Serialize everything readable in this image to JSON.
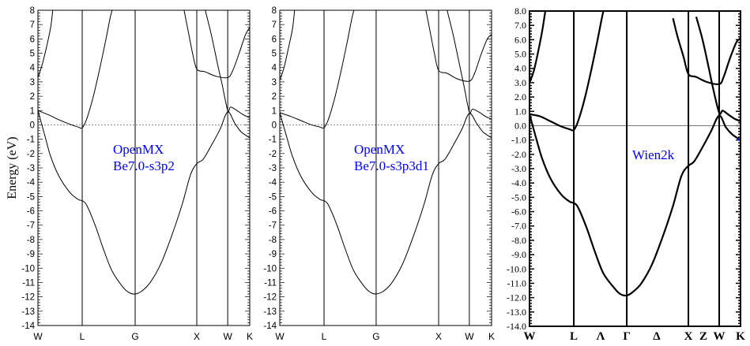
{
  "chart_data": [
    {
      "type": "line",
      "title": "",
      "annotation": [
        "OpenMX",
        "Be7.0-s3p2"
      ],
      "ylabel": "Energy (eV)",
      "xlabel": "",
      "ylim": [
        -14,
        8
      ],
      "yticks": [
        "8",
        "7",
        "6",
        "5",
        "4",
        "3",
        "2",
        "1",
        "0",
        "-1",
        "-2",
        "-3",
        "-4",
        "-5",
        "-6",
        "-7",
        "-8",
        "-9",
        "-10",
        "-11",
        "-12",
        "-13",
        "-14"
      ],
      "kpoints": [
        {
          "label": "W",
          "k": 0
        },
        {
          "label": "L",
          "k": 0.209
        },
        {
          "label": "G",
          "k": 0.459
        },
        {
          "label": "X",
          "k": 0.75
        },
        {
          "label": "W",
          "k": 0.896
        },
        {
          "label": "K",
          "k": 1
        }
      ],
      "fermi_line": "dashed",
      "bands": [
        [
          [
            0,
            1.0
          ],
          [
            0.03,
            -0.6
          ],
          [
            0.06,
            -2.2
          ],
          [
            0.1,
            -3.6
          ],
          [
            0.15,
            -4.7
          ],
          [
            0.19,
            -5.2
          ],
          [
            0.209,
            -5.3
          ],
          [
            0.23,
            -5.6
          ],
          [
            0.27,
            -7.0
          ],
          [
            0.31,
            -8.7
          ],
          [
            0.35,
            -10.2
          ],
          [
            0.4,
            -11.3
          ],
          [
            0.43,
            -11.7
          ],
          [
            0.459,
            -11.8
          ],
          [
            0.49,
            -11.6
          ],
          [
            0.53,
            -11.0
          ],
          [
            0.58,
            -9.7
          ],
          [
            0.63,
            -7.8
          ],
          [
            0.68,
            -5.6
          ],
          [
            0.72,
            -3.5
          ],
          [
            0.75,
            -2.7
          ],
          [
            0.78,
            -2.4
          ],
          [
            0.82,
            -1.4
          ],
          [
            0.86,
            -0.3
          ],
          [
            0.896,
            0.9
          ],
          [
            0.93,
            0.1
          ],
          [
            0.96,
            -0.5
          ],
          [
            1,
            -0.9
          ]
        ],
        [
          [
            0,
            1.0
          ],
          [
            0.05,
            0.7
          ],
          [
            0.1,
            0.35
          ],
          [
            0.15,
            0.05
          ],
          [
            0.19,
            -0.15
          ],
          [
            0.209,
            -0.2
          ],
          [
            0.23,
            0.4
          ],
          [
            0.26,
            1.9
          ],
          [
            0.29,
            3.8
          ],
          [
            0.32,
            5.9
          ],
          [
            0.34,
            7.4
          ],
          [
            0.35,
            8
          ]
        ],
        [
          [
            0,
            3.3
          ],
          [
            0.02,
            4.2
          ],
          [
            0.04,
            5.4
          ],
          [
            0.06,
            6.8
          ],
          [
            0.07,
            8
          ]
        ],
        [
          [
            0.69,
            8
          ],
          [
            0.71,
            6.5
          ],
          [
            0.73,
            5.0
          ],
          [
            0.75,
            3.9
          ],
          [
            0.79,
            3.7
          ],
          [
            0.84,
            3.4
          ],
          [
            0.896,
            3.3
          ],
          [
            0.92,
            3.8
          ],
          [
            0.95,
            5.0
          ],
          [
            0.98,
            6.3
          ],
          [
            1,
            6.8
          ]
        ],
        [
          [
            0.79,
            8
          ],
          [
            0.82,
            6.2
          ],
          [
            0.85,
            4.1
          ],
          [
            0.87,
            2.8
          ],
          [
            0.896,
            1.0
          ],
          [
            0.91,
            1.25
          ],
          [
            0.94,
            1.0
          ],
          [
            0.97,
            0.7
          ],
          [
            1,
            0.5
          ]
        ]
      ]
    },
    {
      "type": "line",
      "title": "",
      "annotation": [
        "OpenMX",
        "Be7.0-s3p3d1"
      ],
      "ylabel": "",
      "xlabel": "",
      "ylim": [
        -14,
        8
      ],
      "yticks": [
        "8",
        "7",
        "6",
        "5",
        "4",
        "3",
        "2",
        "1",
        "0",
        "-1",
        "-2",
        "-3",
        "-4",
        "-5",
        "-6",
        "-7",
        "-8",
        "-9",
        "-10",
        "-11",
        "-12",
        "-13",
        "-14"
      ],
      "kpoints": [
        {
          "label": "W",
          "k": 0
        },
        {
          "label": "L",
          "k": 0.209
        },
        {
          "label": "G",
          "k": 0.455
        },
        {
          "label": "X",
          "k": 0.75
        },
        {
          "label": "W",
          "k": 0.895
        },
        {
          "label": "K",
          "k": 1
        }
      ],
      "fermi_line": "dashed",
      "bands": [
        [
          [
            0,
            0.85
          ],
          [
            0.03,
            -0.7
          ],
          [
            0.06,
            -2.2
          ],
          [
            0.1,
            -3.6
          ],
          [
            0.15,
            -4.7
          ],
          [
            0.19,
            -5.2
          ],
          [
            0.209,
            -5.3
          ],
          [
            0.23,
            -5.6
          ],
          [
            0.27,
            -7.0
          ],
          [
            0.31,
            -8.7
          ],
          [
            0.35,
            -10.2
          ],
          [
            0.4,
            -11.3
          ],
          [
            0.43,
            -11.7
          ],
          [
            0.455,
            -11.8
          ],
          [
            0.49,
            -11.6
          ],
          [
            0.53,
            -11.0
          ],
          [
            0.58,
            -9.7
          ],
          [
            0.63,
            -7.8
          ],
          [
            0.68,
            -5.6
          ],
          [
            0.72,
            -3.5
          ],
          [
            0.75,
            -2.7
          ],
          [
            0.78,
            -2.4
          ],
          [
            0.82,
            -1.4
          ],
          [
            0.86,
            -0.3
          ],
          [
            0.895,
            0.8
          ],
          [
            0.93,
            0.1
          ],
          [
            0.96,
            -0.5
          ],
          [
            1,
            -0.9
          ]
        ],
        [
          [
            0,
            0.85
          ],
          [
            0.05,
            0.6
          ],
          [
            0.1,
            0.3
          ],
          [
            0.15,
            0.0
          ],
          [
            0.19,
            -0.15
          ],
          [
            0.209,
            -0.2
          ],
          [
            0.23,
            0.4
          ],
          [
            0.26,
            1.9
          ],
          [
            0.29,
            3.8
          ],
          [
            0.32,
            5.9
          ],
          [
            0.34,
            7.4
          ],
          [
            0.35,
            8
          ]
        ],
        [
          [
            0,
            3.1
          ],
          [
            0.02,
            4.0
          ],
          [
            0.04,
            5.3
          ],
          [
            0.06,
            6.7
          ],
          [
            0.07,
            8
          ]
        ],
        [
          [
            0.69,
            8
          ],
          [
            0.71,
            6.5
          ],
          [
            0.73,
            5.0
          ],
          [
            0.75,
            3.8
          ],
          [
            0.79,
            3.6
          ],
          [
            0.84,
            3.2
          ],
          [
            0.895,
            3.05
          ],
          [
            0.92,
            3.6
          ],
          [
            0.95,
            4.9
          ],
          [
            0.98,
            6.0
          ],
          [
            1,
            6.3
          ]
        ],
        [
          [
            0.79,
            8
          ],
          [
            0.82,
            6.2
          ],
          [
            0.85,
            4.1
          ],
          [
            0.87,
            2.7
          ],
          [
            0.895,
            0.9
          ],
          [
            0.91,
            1.1
          ],
          [
            0.94,
            0.9
          ],
          [
            0.97,
            0.6
          ],
          [
            1,
            0.4
          ]
        ]
      ]
    },
    {
      "type": "line",
      "title": "",
      "annotation": [
        "Wien2k"
      ],
      "ylabel": "",
      "xlabel": "",
      "ylim": [
        -14,
        8
      ],
      "yticks": [
        "8.0",
        "7.0",
        "6.0",
        "5.0",
        "4.0",
        "3.0",
        "2.0",
        "1.0",
        "0.0",
        "-1.0",
        "-2.0",
        "-3.0",
        "-4.0",
        "-5.0",
        "-6.0",
        "-7.0",
        "-8.0",
        "-9.0",
        "-10.0",
        "-11.0",
        "-12.0",
        "-13.0",
        "-14.0"
      ],
      "kpoints": [
        {
          "label": "W",
          "k": 0,
          "line": false
        },
        {
          "label": "L",
          "k": 0.21,
          "line": true
        },
        {
          "label": "Λ",
          "k": 0.337,
          "line": false
        },
        {
          "label": "Γ",
          "k": 0.461,
          "line": true
        },
        {
          "label": "Δ",
          "k": 0.603,
          "line": false
        },
        {
          "label": "X",
          "k": 0.753,
          "line": true
        },
        {
          "label": "Z",
          "k": 0.824,
          "line": false
        },
        {
          "label": "W",
          "k": 0.899,
          "line": true
        },
        {
          "label": "K",
          "k": 1,
          "line": false
        }
      ],
      "fermi_line": "solid",
      "bands": [
        [
          [
            0,
            0.8
          ],
          [
            0.03,
            -0.8
          ],
          [
            0.06,
            -2.3
          ],
          [
            0.1,
            -3.7
          ],
          [
            0.15,
            -4.8
          ],
          [
            0.19,
            -5.3
          ],
          [
            0.21,
            -5.4
          ],
          [
            0.23,
            -5.7
          ],
          [
            0.27,
            -7.1
          ],
          [
            0.31,
            -8.8
          ],
          [
            0.35,
            -10.3
          ],
          [
            0.4,
            -11.3
          ],
          [
            0.43,
            -11.75
          ],
          [
            0.461,
            -11.85
          ],
          [
            0.49,
            -11.6
          ],
          [
            0.53,
            -11.0
          ],
          [
            0.58,
            -9.7
          ],
          [
            0.63,
            -7.8
          ],
          [
            0.68,
            -5.6
          ],
          [
            0.72,
            -3.5
          ],
          [
            0.753,
            -2.8
          ],
          [
            0.78,
            -2.5
          ],
          [
            0.82,
            -1.5
          ],
          [
            0.86,
            -0.4
          ],
          [
            0.899,
            0.7
          ],
          [
            0.93,
            -0.1
          ],
          [
            0.96,
            -0.6
          ],
          [
            1,
            -1.0
          ]
        ],
        [
          [
            0,
            0.8
          ],
          [
            0.05,
            0.65
          ],
          [
            0.1,
            0.3
          ],
          [
            0.15,
            -0.05
          ],
          [
            0.19,
            -0.25
          ],
          [
            0.21,
            -0.3
          ],
          [
            0.23,
            0.3
          ],
          [
            0.26,
            1.8
          ],
          [
            0.29,
            3.7
          ],
          [
            0.32,
            5.8
          ],
          [
            0.34,
            7.3
          ],
          [
            0.35,
            8
          ]
        ],
        [
          [
            0,
            3.0
          ],
          [
            0.02,
            3.8
          ],
          [
            0.04,
            5.1
          ],
          [
            0.06,
            6.6
          ],
          [
            0.075,
            8
          ]
        ],
        [
          [
            0.68,
            7.5
          ],
          [
            0.7,
            6.3
          ],
          [
            0.73,
            4.8
          ],
          [
            0.753,
            3.6
          ],
          [
            0.79,
            3.4
          ],
          [
            0.84,
            3.05
          ],
          [
            0.899,
            2.9
          ],
          [
            0.92,
            3.4
          ],
          [
            0.95,
            4.7
          ],
          [
            0.98,
            5.8
          ],
          [
            1,
            6.1
          ]
        ],
        [
          [
            0.79,
            7.6
          ],
          [
            0.82,
            6.0
          ],
          [
            0.85,
            4.0
          ],
          [
            0.87,
            2.6
          ],
          [
            0.899,
            0.9
          ],
          [
            0.915,
            1.05
          ],
          [
            0.94,
            0.8
          ],
          [
            0.97,
            0.5
          ],
          [
            1,
            0.3
          ]
        ]
      ],
      "highlight_color": "#0000ff"
    }
  ],
  "colors": {
    "annotation": "#0000ff",
    "band": "#000000",
    "fermi": "#777777"
  }
}
